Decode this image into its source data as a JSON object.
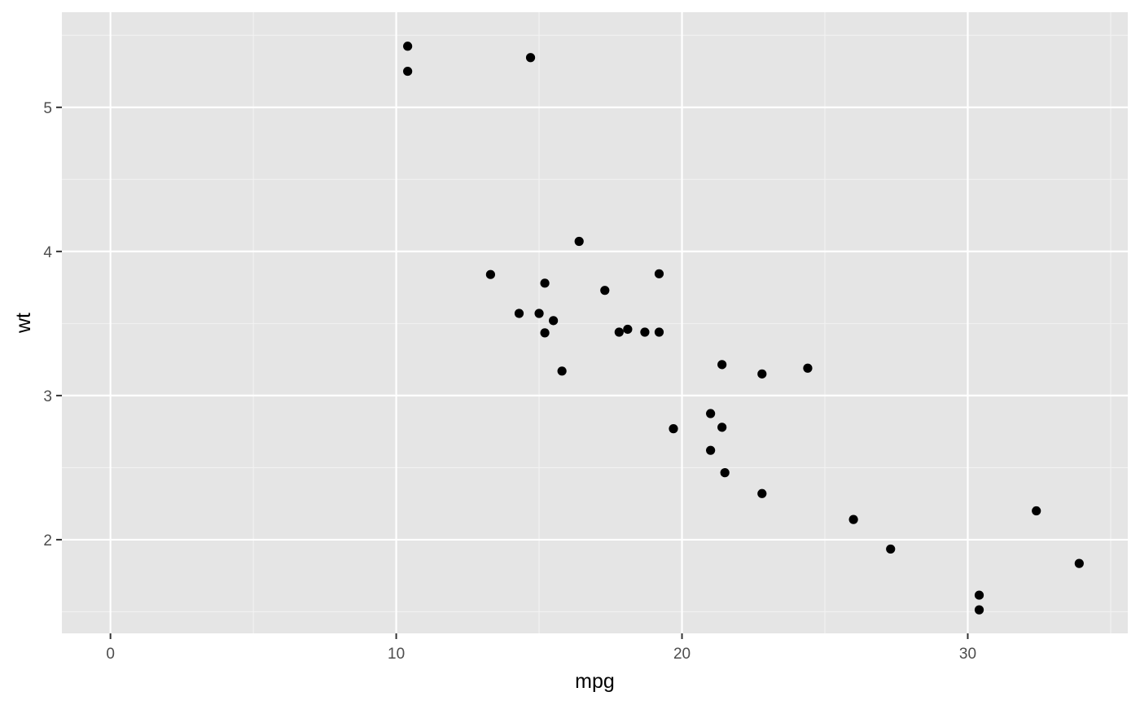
{
  "chart_data": {
    "type": "scatter",
    "title": "",
    "xlabel": "mpg",
    "ylabel": "wt",
    "xlim": [
      -1.7,
      35.6
    ],
    "ylim": [
      1.35,
      5.66
    ],
    "x_ticks": [
      0,
      10,
      20,
      30
    ],
    "x_tick_labels": [
      "0",
      "10",
      "20",
      "30"
    ],
    "x_minor_ticks": [
      5,
      15,
      25,
      35
    ],
    "y_ticks": [
      2,
      3,
      4,
      5
    ],
    "y_tick_labels": [
      "2",
      "3",
      "4",
      "5"
    ],
    "y_minor_ticks": [
      1.5,
      2.5,
      3.5,
      4.5,
      5.5
    ],
    "grid": true,
    "colors": {
      "panel_background": "#e5e5e5",
      "grid_major": "#ffffff",
      "grid_minor": "#f2f2f2",
      "point": "#000000",
      "tick_mark": "#333333"
    },
    "points": [
      {
        "x": 21.0,
        "y": 2.62
      },
      {
        "x": 21.0,
        "y": 2.875
      },
      {
        "x": 22.8,
        "y": 2.32
      },
      {
        "x": 21.4,
        "y": 3.215
      },
      {
        "x": 18.7,
        "y": 3.44
      },
      {
        "x": 18.1,
        "y": 3.46
      },
      {
        "x": 14.3,
        "y": 3.57
      },
      {
        "x": 24.4,
        "y": 3.19
      },
      {
        "x": 22.8,
        "y": 3.15
      },
      {
        "x": 19.2,
        "y": 3.44
      },
      {
        "x": 17.8,
        "y": 3.44
      },
      {
        "x": 16.4,
        "y": 4.07
      },
      {
        "x": 17.3,
        "y": 3.73
      },
      {
        "x": 15.2,
        "y": 3.78
      },
      {
        "x": 10.4,
        "y": 5.25
      },
      {
        "x": 10.4,
        "y": 5.424
      },
      {
        "x": 14.7,
        "y": 5.345
      },
      {
        "x": 32.4,
        "y": 2.2
      },
      {
        "x": 30.4,
        "y": 1.615
      },
      {
        "x": 33.9,
        "y": 1.835
      },
      {
        "x": 21.5,
        "y": 2.465
      },
      {
        "x": 15.5,
        "y": 3.52
      },
      {
        "x": 15.2,
        "y": 3.435
      },
      {
        "x": 13.3,
        "y": 3.84
      },
      {
        "x": 19.2,
        "y": 3.845
      },
      {
        "x": 27.3,
        "y": 1.935
      },
      {
        "x": 26.0,
        "y": 2.14
      },
      {
        "x": 30.4,
        "y": 1.513
      },
      {
        "x": 15.8,
        "y": 3.17
      },
      {
        "x": 19.7,
        "y": 2.77
      },
      {
        "x": 15.0,
        "y": 3.57
      },
      {
        "x": 21.4,
        "y": 2.78
      }
    ]
  }
}
